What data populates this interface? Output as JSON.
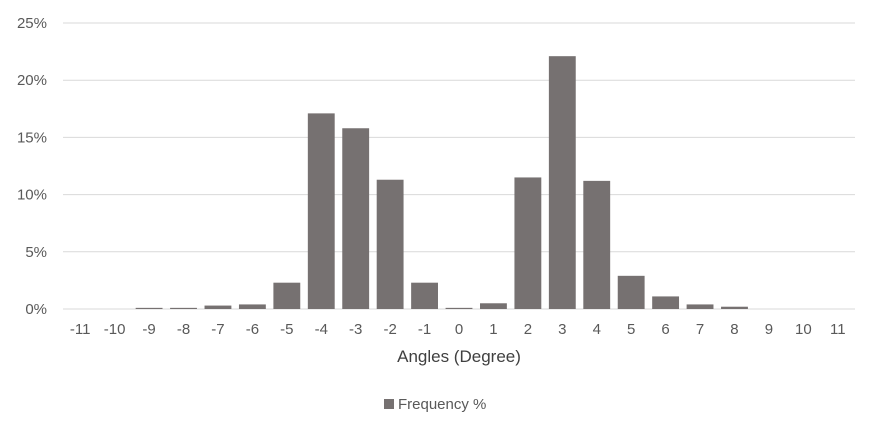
{
  "chart_data": {
    "type": "bar",
    "xlabel": "Angles (Degree)",
    "ylabel": "",
    "categories": [
      "-11",
      "-10",
      "-9",
      "-8",
      "-7",
      "-6",
      "-5",
      "-4",
      "-3",
      "-2",
      "-1",
      "0",
      "1",
      "2",
      "3",
      "4",
      "5",
      "6",
      "7",
      "8",
      "9",
      "10",
      "11"
    ],
    "series": [
      {
        "name": "Frequency %",
        "values": [
          0,
          0,
          0.1,
          0.1,
          0.3,
          0.4,
          2.3,
          17.1,
          15.8,
          11.3,
          2.3,
          0.1,
          0.5,
          11.5,
          22.1,
          11.2,
          2.9,
          1.1,
          0.4,
          0.2,
          0,
          0,
          0
        ]
      }
    ],
    "ylim": [
      0,
      25
    ],
    "yticks": [
      "0%",
      "5%",
      "10%",
      "15%",
      "20%",
      "25%"
    ],
    "ytick_values": [
      0,
      5,
      10,
      15,
      20,
      25
    ],
    "grid": true,
    "legend_position": "bottom",
    "bar_color": "#767171",
    "grid_color": "#d9d9d9"
  }
}
